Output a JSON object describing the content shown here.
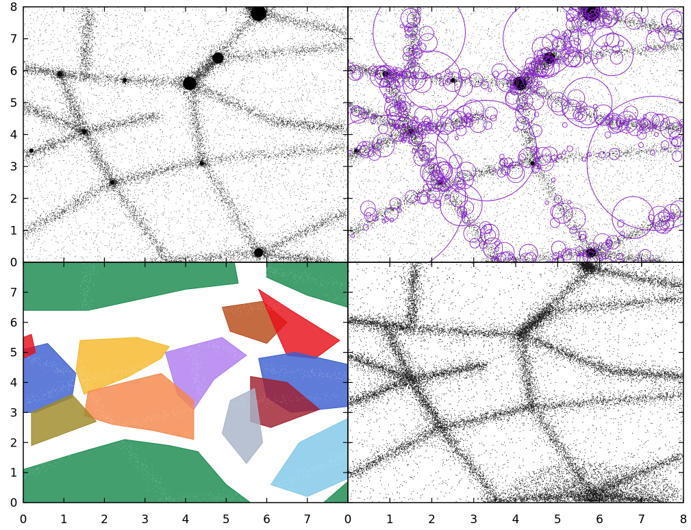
{
  "chart_data": [
    {
      "type": "scatter",
      "panel": "top-left",
      "xlim": [
        0,
        8
      ],
      "ylim": [
        0,
        8
      ],
      "x_ticks": [],
      "y_ticks": [
        "0",
        "1",
        "2",
        "3",
        "4",
        "5",
        "6",
        "7",
        "8"
      ],
      "grid": false,
      "colors": {
        "points": "#000000"
      },
      "halos": [
        {
          "x": 5.8,
          "y": 7.8,
          "r": 0.35
        },
        {
          "x": 4.1,
          "y": 5.6,
          "r": 0.3
        },
        {
          "x": 4.8,
          "y": 6.4,
          "r": 0.25
        },
        {
          "x": 0.9,
          "y": 5.9,
          "r": 0.12
        },
        {
          "x": 1.5,
          "y": 4.1,
          "r": 0.1
        },
        {
          "x": 2.2,
          "y": 2.5,
          "r": 0.1
        },
        {
          "x": 5.8,
          "y": 0.3,
          "r": 0.2
        },
        {
          "x": 4.4,
          "y": 3.1,
          "r": 0.08
        },
        {
          "x": 2.5,
          "y": 5.7,
          "r": 0.08
        },
        {
          "x": 0.2,
          "y": 3.5,
          "r": 0.06
        }
      ]
    },
    {
      "type": "scatter",
      "panel": "top-right",
      "xlim": [
        0,
        8
      ],
      "ylim": [
        0,
        8
      ],
      "x_ticks": [],
      "y_ticks": [],
      "grid": false,
      "colors": {
        "points": "#000000",
        "circles": "#8a1fd0"
      },
      "halo_circles": [
        {
          "x": 0.9,
          "y": 2.1,
          "r": 1.9
        },
        {
          "x": 7.3,
          "y": 3.1,
          "r": 1.6
        },
        {
          "x": 1.7,
          "y": 7.2,
          "r": 1.1
        },
        {
          "x": 4.6,
          "y": 7.0,
          "r": 0.9
        },
        {
          "x": 3.3,
          "y": 3.5,
          "r": 1.2
        },
        {
          "x": 2.0,
          "y": 5.7,
          "r": 0.7
        },
        {
          "x": 5.7,
          "y": 5.0,
          "r": 0.6
        },
        {
          "x": 6.3,
          "y": 6.5,
          "r": 0.5
        },
        {
          "x": 2.7,
          "y": 1.8,
          "r": 0.5
        },
        {
          "x": 6.8,
          "y": 1.4,
          "r": 0.5
        }
      ]
    },
    {
      "type": "scatter",
      "panel": "bottom-left",
      "xlim": [
        0,
        8
      ],
      "ylim": [
        0,
        8
      ],
      "x_ticks": [
        "0",
        "1",
        "2",
        "3",
        "4",
        "5",
        "6",
        "7"
      ],
      "y_ticks": [
        "0",
        "1",
        "2",
        "3",
        "4",
        "5",
        "6",
        "7"
      ],
      "grid": false,
      "colors": {
        "green": "#1a8a4e",
        "red": "#e8101a",
        "brown": "#b84a18",
        "blue": "#3a5fd0",
        "yellow": "#f5b82a",
        "violet": "#b07cf0",
        "orange": "#f5864a",
        "olive": "#a08a2a",
        "darkred": "#a02030",
        "gray": "#a8b4c8",
        "lightblue": "#80c8e8"
      }
    },
    {
      "type": "scatter",
      "panel": "bottom-right",
      "xlim": [
        0,
        8
      ],
      "ylim": [
        0,
        8
      ],
      "x_ticks": [
        "0",
        "1",
        "2",
        "3",
        "4",
        "5",
        "6",
        "7",
        "8"
      ],
      "y_ticks": [],
      "grid": false,
      "colors": {
        "points": "#000000"
      }
    }
  ]
}
